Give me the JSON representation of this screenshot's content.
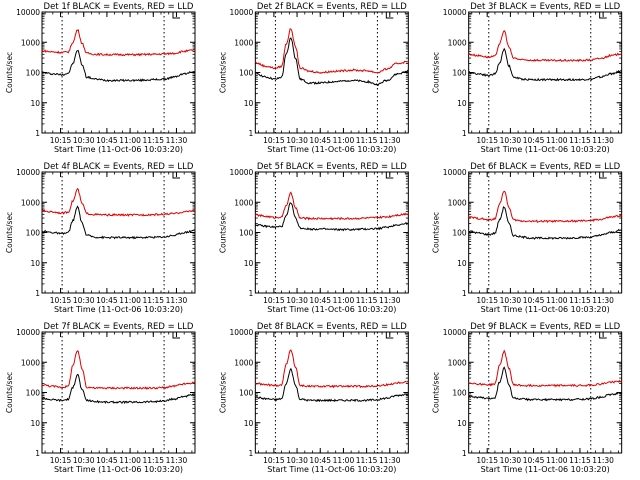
{
  "shared": {
    "ylabel": "Counts/sec",
    "xlabel": "Start Time (11-Oct-06 10:03:20)",
    "xtick_labels": [
      "10:15",
      "10:30",
      "10:45",
      "11:00",
      "11:15",
      "11:30"
    ],
    "ytick_labels": [
      "1",
      "10",
      "100",
      "1000",
      "10000"
    ],
    "series_colors": {
      "events": "#000000",
      "lld": "#e00000"
    }
  },
  "chart_data": [
    {
      "type": "line",
      "title": "Det 1f BLACK = Events, RED = LLD",
      "xlabel": "Start Time (11-Oct-06 10:03:20)",
      "ylabel": "Counts/sec",
      "xlim": [
        "10:03",
        "11:42"
      ],
      "ylim": [
        1,
        10000
      ],
      "yscale": "log",
      "flare_peak": "10:26",
      "night_lines": [
        "10:16",
        "11:22"
      ],
      "x": [
        "10:03",
        "10:10",
        "10:16",
        "10:20",
        "10:23",
        "10:26",
        "10:29",
        "10:32",
        "10:38",
        "10:45",
        "10:55",
        "11:05",
        "11:15",
        "11:22",
        "11:28",
        "11:35",
        "11:42"
      ],
      "series": [
        {
          "color": "#000000",
          "values": [
            100,
            90,
            85,
            95,
            200,
            550,
            180,
            70,
            60,
            55,
            55,
            55,
            58,
            60,
            70,
            90,
            110
          ]
        },
        {
          "color": "#e00000",
          "values": [
            520,
            480,
            460,
            480,
            1000,
            2600,
            900,
            430,
            400,
            390,
            390,
            390,
            400,
            410,
            430,
            500,
            560
          ]
        }
      ]
    },
    {
      "type": "line",
      "title": "Det 2f BLACK = Events, RED = LLD",
      "xlabel": "Start Time (11-Oct-06 10:03:20)",
      "ylabel": "Counts/sec",
      "xlim": [
        "10:03",
        "11:42"
      ],
      "ylim": [
        1,
        10000
      ],
      "yscale": "log",
      "flare_peak": "10:26",
      "night_lines": [
        "10:16",
        "11:22"
      ],
      "x": [
        "10:03",
        "10:10",
        "10:16",
        "10:20",
        "10:23",
        "10:26",
        "10:29",
        "10:32",
        "10:38",
        "10:45",
        "10:55",
        "11:05",
        "11:15",
        "11:22",
        "11:28",
        "11:35",
        "11:42"
      ],
      "series": [
        {
          "color": "#000000",
          "values": [
            95,
            70,
            60,
            70,
            400,
            1400,
            300,
            60,
            45,
            45,
            50,
            55,
            50,
            40,
            55,
            90,
            110
          ]
        },
        {
          "color": "#e00000",
          "values": [
            210,
            160,
            140,
            160,
            900,
            2800,
            700,
            140,
            110,
            100,
            110,
            120,
            115,
            100,
            130,
            200,
            230
          ]
        }
      ]
    },
    {
      "type": "line",
      "title": "Det 3f BLACK = Events, RED = LLD",
      "xlabel": "Start Time (11-Oct-06 10:03:20)",
      "ylabel": "Counts/sec",
      "xlim": [
        "10:03",
        "11:42"
      ],
      "ylim": [
        1,
        10000
      ],
      "yscale": "log",
      "flare_peak": "10:26",
      "night_lines": [
        "10:16",
        "11:22"
      ],
      "x": [
        "10:03",
        "10:10",
        "10:16",
        "10:20",
        "10:23",
        "10:26",
        "10:29",
        "10:32",
        "10:38",
        "10:45",
        "10:55",
        "11:05",
        "11:15",
        "11:22",
        "11:28",
        "11:35",
        "11:42"
      ],
      "series": [
        {
          "color": "#000000",
          "values": [
            100,
            90,
            80,
            90,
            200,
            600,
            170,
            70,
            60,
            58,
            58,
            58,
            58,
            60,
            70,
            90,
            110
          ]
        },
        {
          "color": "#e00000",
          "values": [
            400,
            360,
            320,
            340,
            900,
            2400,
            700,
            300,
            260,
            255,
            250,
            250,
            250,
            260,
            290,
            360,
            420
          ]
        }
      ]
    },
    {
      "type": "line",
      "title": "Det 4f BLACK = Events, RED = LLD",
      "xlabel": "Start Time (11-Oct-06 10:03:20)",
      "ylabel": "Counts/sec",
      "xlim": [
        "10:03",
        "11:42"
      ],
      "ylim": [
        1,
        10000
      ],
      "yscale": "log",
      "flare_peak": "10:26",
      "night_lines": [
        "10:16",
        "11:22"
      ],
      "x": [
        "10:03",
        "10:10",
        "10:16",
        "10:20",
        "10:23",
        "10:26",
        "10:29",
        "10:32",
        "10:38",
        "10:45",
        "10:55",
        "11:05",
        "11:15",
        "11:22",
        "11:28",
        "11:35",
        "11:42"
      ],
      "series": [
        {
          "color": "#000000",
          "values": [
            110,
            100,
            90,
            100,
            250,
            700,
            200,
            80,
            70,
            68,
            68,
            68,
            70,
            72,
            80,
            100,
            120
          ]
        },
        {
          "color": "#e00000",
          "values": [
            520,
            480,
            440,
            470,
            1100,
            2700,
            900,
            420,
            390,
            380,
            380,
            380,
            390,
            400,
            420,
            480,
            540
          ]
        }
      ]
    },
    {
      "type": "line",
      "title": "Det 5f BLACK = Events, RED = LLD",
      "xlabel": "Start Time (11-Oct-06 10:03:20)",
      "ylabel": "Counts/sec",
      "xlim": [
        "10:03",
        "11:42"
      ],
      "ylim": [
        1,
        10000
      ],
      "yscale": "log",
      "flare_peak": "10:26",
      "night_lines": [
        "10:16",
        "11:22"
      ],
      "x": [
        "10:03",
        "10:10",
        "10:16",
        "10:20",
        "10:23",
        "10:26",
        "10:29",
        "10:32",
        "10:38",
        "10:45",
        "10:55",
        "11:05",
        "11:15",
        "11:22",
        "11:28",
        "11:35",
        "11:42"
      ],
      "series": [
        {
          "color": "#000000",
          "values": [
            180,
            160,
            150,
            160,
            350,
            1000,
            300,
            140,
            130,
            130,
            125,
            125,
            130,
            135,
            150,
            180,
            200
          ]
        },
        {
          "color": "#e00000",
          "values": [
            380,
            340,
            310,
            330,
            800,
            2000,
            650,
            300,
            290,
            290,
            290,
            290,
            300,
            310,
            330,
            380,
            420
          ]
        }
      ]
    },
    {
      "type": "line",
      "title": "Det 6f BLACK = Events, RED = LLD",
      "xlabel": "Start Time (11-Oct-06 10:03:20)",
      "ylabel": "Counts/sec",
      "xlim": [
        "10:03",
        "11:42"
      ],
      "ylim": [
        1,
        10000
      ],
      "yscale": "log",
      "flare_peak": "10:26",
      "night_lines": [
        "10:16",
        "11:22"
      ],
      "x": [
        "10:03",
        "10:10",
        "10:16",
        "10:20",
        "10:23",
        "10:26",
        "10:29",
        "10:32",
        "10:38",
        "10:45",
        "10:55",
        "11:05",
        "11:15",
        "11:22",
        "11:28",
        "11:35",
        "11:42"
      ],
      "series": [
        {
          "color": "#000000",
          "values": [
            110,
            95,
            85,
            95,
            260,
            700,
            200,
            80,
            70,
            65,
            65,
            65,
            68,
            70,
            80,
            100,
            120
          ]
        },
        {
          "color": "#e00000",
          "values": [
            320,
            290,
            260,
            280,
            900,
            2400,
            700,
            260,
            240,
            235,
            235,
            235,
            240,
            250,
            270,
            320,
            360
          ]
        }
      ]
    },
    {
      "type": "line",
      "title": "Det 7f BLACK = Events, RED = LLD",
      "xlabel": "Start Time (11-Oct-06 10:03:20)",
      "ylabel": "Counts/sec",
      "xlim": [
        "10:03",
        "11:42"
      ],
      "ylim": [
        1,
        10000
      ],
      "yscale": "log",
      "flare_peak": "10:26",
      "night_lines": [
        "10:16",
        "11:22"
      ],
      "x": [
        "10:03",
        "10:10",
        "10:16",
        "10:20",
        "10:23",
        "10:26",
        "10:29",
        "10:32",
        "10:38",
        "10:45",
        "10:55",
        "11:05",
        "11:15",
        "11:22",
        "11:28",
        "11:35",
        "11:42"
      ],
      "series": [
        {
          "color": "#000000",
          "values": [
            65,
            58,
            55,
            60,
            150,
            400,
            120,
            55,
            50,
            48,
            48,
            48,
            50,
            52,
            60,
            75,
            85
          ]
        },
        {
          "color": "#e00000",
          "values": [
            180,
            160,
            150,
            160,
            800,
            2400,
            600,
            150,
            140,
            140,
            140,
            140,
            140,
            145,
            160,
            190,
            210
          ]
        }
      ]
    },
    {
      "type": "line",
      "title": "Det 8f BLACK = Events, RED = LLD",
      "xlabel": "Start Time (11-Oct-06 10:03:20)",
      "ylabel": "Counts/sec",
      "xlim": [
        "10:03",
        "11:42"
      ],
      "ylim": [
        1,
        10000
      ],
      "yscale": "log",
      "flare_peak": "10:26",
      "night_lines": [
        "10:16",
        "11:22"
      ],
      "x": [
        "10:03",
        "10:10",
        "10:16",
        "10:20",
        "10:23",
        "10:26",
        "10:29",
        "10:32",
        "10:38",
        "10:45",
        "10:55",
        "11:05",
        "11:15",
        "11:22",
        "11:28",
        "11:35",
        "11:42"
      ],
      "series": [
        {
          "color": "#000000",
          "values": [
            70,
            62,
            58,
            62,
            200,
            600,
            170,
            60,
            55,
            55,
            55,
            55,
            55,
            58,
            65,
            80,
            90
          ]
        },
        {
          "color": "#e00000",
          "values": [
            200,
            180,
            170,
            180,
            900,
            2500,
            700,
            170,
            160,
            160,
            160,
            160,
            160,
            165,
            180,
            210,
            230
          ]
        }
      ]
    },
    {
      "type": "line",
      "title": "Det 9f BLACK = Events, RED = LLD",
      "xlabel": "Start Time (11-Oct-06 10:03:20)",
      "ylabel": "Counts/sec",
      "xlim": [
        "10:03",
        "11:42"
      ],
      "ylim": [
        1,
        10000
      ],
      "yscale": "log",
      "flare_peak": "10:26",
      "night_lines": [
        "10:16",
        "11:22"
      ],
      "x": [
        "10:03",
        "10:10",
        "10:16",
        "10:20",
        "10:23",
        "10:26",
        "10:29",
        "10:32",
        "10:38",
        "10:45",
        "10:55",
        "11:05",
        "11:15",
        "11:22",
        "11:28",
        "11:35",
        "11:42"
      ],
      "series": [
        {
          "color": "#000000",
          "values": [
            75,
            68,
            62,
            68,
            220,
            650,
            180,
            65,
            60,
            58,
            58,
            58,
            60,
            62,
            70,
            85,
            95
          ]
        },
        {
          "color": "#e00000",
          "values": [
            210,
            190,
            180,
            190,
            800,
            2300,
            650,
            180,
            170,
            170,
            170,
            170,
            170,
            175,
            190,
            220,
            240
          ]
        }
      ]
    }
  ]
}
